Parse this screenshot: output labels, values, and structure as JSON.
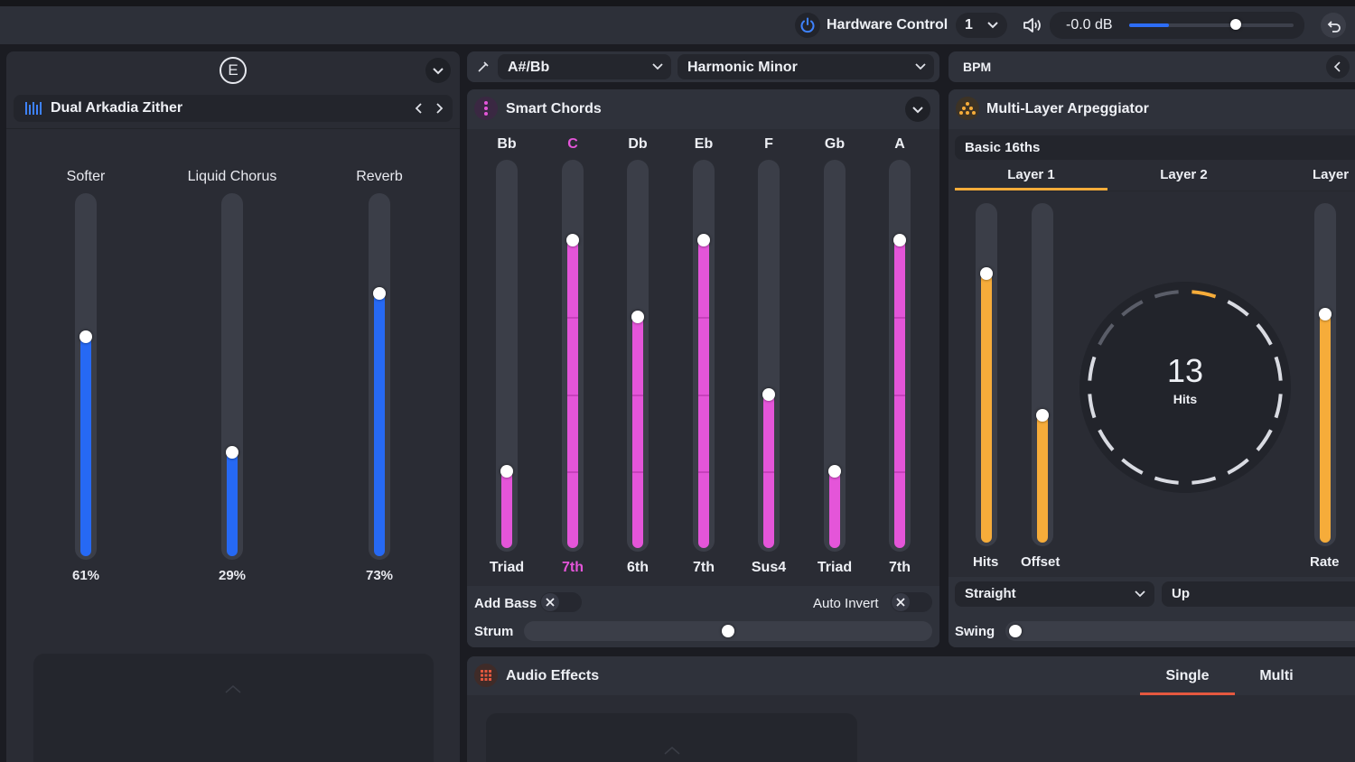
{
  "topbar": {
    "hardware_label": "Hardware Control",
    "channel_value": "1",
    "volume_value": "-0.0 dB",
    "volume_level": 0.65,
    "power_icon": "power-icon",
    "speaker_icon": "speaker-icon",
    "undo_icon": "undo-icon"
  },
  "instrument": {
    "badge": "E",
    "name": "Dual Arkadia Zither",
    "sliders": [
      {
        "label": "Softer",
        "value_text": "61%",
        "value": 0.61
      },
      {
        "label": "Liquid Chorus",
        "value_text": "29%",
        "value": 0.29
      },
      {
        "label": "Reverb",
        "value_text": "73%",
        "value": 0.73
      }
    ],
    "accent": "#2669f4"
  },
  "scale": {
    "key": "A#/Bb",
    "mode": "Harmonic Minor"
  },
  "smart_chords": {
    "title": "Smart Chords",
    "accent": "#e455d9",
    "chords": [
      {
        "note": "Bb",
        "type": "Triad",
        "level": 0.2,
        "highlight": false
      },
      {
        "note": "C",
        "type": "7th",
        "level": 0.8,
        "highlight": true
      },
      {
        "note": "Db",
        "type": "6th",
        "level": 0.6,
        "highlight": false
      },
      {
        "note": "Eb",
        "type": "7th",
        "level": 0.8,
        "highlight": false
      },
      {
        "note": "F",
        "type": "Sus4",
        "level": 0.4,
        "highlight": false
      },
      {
        "note": "Gb",
        "type": "Triad",
        "level": 0.2,
        "highlight": false
      },
      {
        "note": "A",
        "type": "7th",
        "level": 0.8,
        "highlight": false
      }
    ],
    "add_bass_label": "Add Bass",
    "auto_invert_label": "Auto Invert",
    "strum_label": "Strum",
    "strum_level": 0.5
  },
  "arpeggiator": {
    "bpm_label": "BPM",
    "title": "Multi-Layer Arpeggiator",
    "preset": "Basic 16ths",
    "tabs": [
      "Layer 1",
      "Layer 2",
      "Layer"
    ],
    "hits_label": "Hits",
    "offset_label": "Offset",
    "rate_label": "Rate",
    "hits_level": 0.8,
    "offset_level": 0.38,
    "rate_level": 0.68,
    "dial_value": "13",
    "dial_label": "Hits",
    "timing_value": "Straight",
    "direction_value": "Up",
    "swing_label": "Swing",
    "swing_level": 0.0,
    "accent": "#f6ac3a"
  },
  "audio_effects": {
    "title": "Audio Effects",
    "tabs": [
      "Single",
      "Multi"
    ],
    "accent": "#e5583f"
  }
}
